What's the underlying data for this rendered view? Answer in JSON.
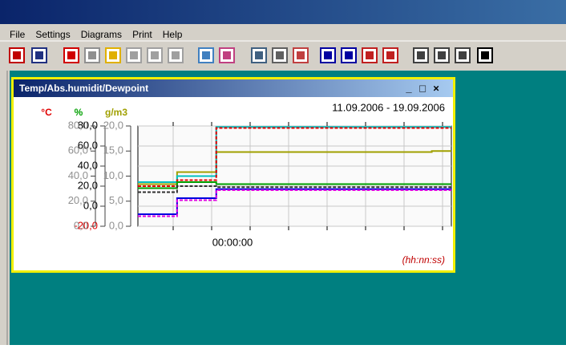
{
  "menu": [
    "File",
    "Settings",
    "Diagrams",
    "Print",
    "Help"
  ],
  "window": {
    "title": "Temp/Abs.humidit/Dewpoint",
    "buttons": [
      "_",
      "□",
      "×"
    ]
  },
  "chart_data": {
    "type": "line",
    "date_range": "11.09.2006 - 19.09.2006",
    "x_tick_label": "00:00:00",
    "x_unit": "(hh:nn:ss)",
    "grid": true,
    "axes": [
      {
        "label": "°C",
        "color": "#e00000",
        "ylim": [
          -20,
          80
        ],
        "yticks": [
          {
            "value": 80,
            "label": "80,0"
          },
          {
            "value": 60,
            "label": "60,0"
          },
          {
            "value": 40,
            "label": "40,0"
          },
          {
            "value": 20,
            "label": "20,0"
          },
          {
            "value": 0,
            "label": "0,0"
          },
          {
            "value": -20,
            "label": "-20,0",
            "color": "#e00000"
          }
        ]
      },
      {
        "label": "%",
        "color": "#00a000",
        "ylim": [
          0,
          80
        ],
        "yticks": [
          {
            "value": 80,
            "label": "80,0"
          },
          {
            "value": 60,
            "label": "60,0"
          },
          {
            "value": 40,
            "label": "40,0"
          },
          {
            "value": 20,
            "label": "20,0"
          },
          {
            "value": 0,
            "label": "0,0"
          }
        ]
      },
      {
        "label": "g/m3",
        "color": "#a0a000",
        "ylim": [
          0,
          20
        ],
        "yticks": [
          {
            "value": 20,
            "label": "20,0"
          },
          {
            "value": 15,
            "label": "15,0"
          },
          {
            "value": 10,
            "label": "10,0"
          },
          {
            "value": 5,
            "label": "5,0"
          },
          {
            "value": 0,
            "label": "0,0"
          }
        ]
      }
    ],
    "series": [
      {
        "color": "#a0a000",
        "values": [
          22,
          22,
          34,
          34,
          54,
          54,
          54,
          54,
          54,
          54,
          54,
          54,
          54,
          54,
          54,
          55,
          55
        ]
      },
      {
        "color": "#00c0c0",
        "values": [
          24,
          24,
          30,
          30,
          79,
          79,
          79,
          79,
          79,
          79,
          79,
          79,
          79,
          79,
          79,
          79,
          79
        ]
      },
      {
        "color": "#e00000",
        "values": [
          20,
          20,
          26,
          26,
          78,
          78,
          78,
          78,
          78,
          78,
          78,
          78,
          78,
          78,
          78,
          78,
          78
        ]
      },
      {
        "color": "#00a000",
        "values": [
          18,
          18,
          24,
          24,
          22,
          22,
          22,
          22,
          22,
          22,
          22,
          22,
          22,
          22,
          22,
          22,
          22
        ]
      },
      {
        "color": "#303030",
        "values": [
          14,
          14,
          20,
          20,
          19,
          19,
          19,
          19,
          19,
          19,
          19,
          19,
          19,
          19,
          19,
          19,
          19
        ]
      },
      {
        "color": "#0000e0",
        "values": [
          -8,
          -8,
          8,
          8,
          17,
          17,
          17,
          17,
          17,
          17,
          17,
          17,
          17,
          17,
          17,
          17,
          17
        ]
      },
      {
        "color": "#e000e0",
        "values": [
          -10,
          -10,
          6,
          6,
          16,
          16,
          16,
          16,
          16,
          16,
          16,
          16,
          16,
          16,
          16,
          16,
          16
        ]
      }
    ]
  }
}
